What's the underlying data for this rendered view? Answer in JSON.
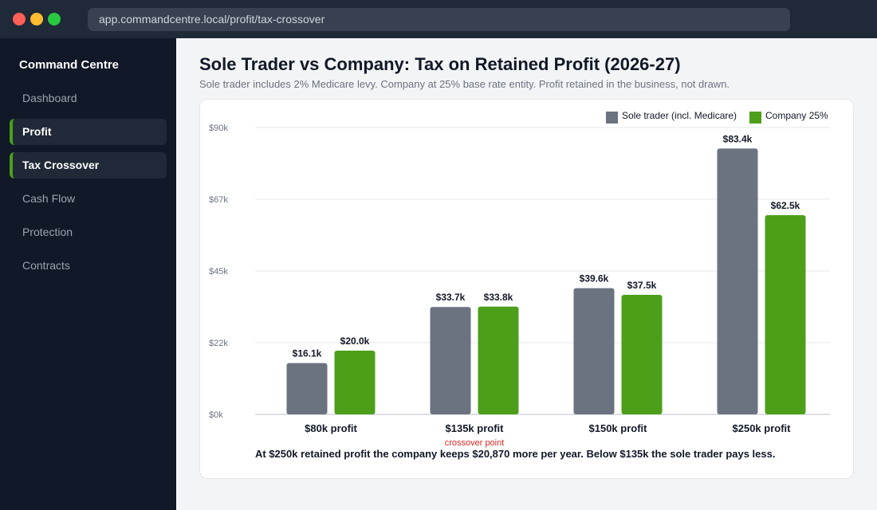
{
  "browser": {
    "url": "app.commandcentre.local/profit/tax-crossover"
  },
  "sidebar": {
    "brand": "Command Centre",
    "items": [
      {
        "label": "Dashboard",
        "active": false
      },
      {
        "label": "Profit",
        "active": true
      },
      {
        "label": "Tax Crossover",
        "active": true
      },
      {
        "label": "Cash Flow",
        "active": false
      },
      {
        "label": "Protection",
        "active": false
      },
      {
        "label": "Contracts",
        "active": false
      }
    ]
  },
  "header": {
    "title": "Sole Trader vs Company: Tax on Retained Profit (2026-27)",
    "subtitle": "Sole trader includes 2% Medicare levy. Company at 25% base rate entity. Profit retained in the business, not drawn."
  },
  "colors": {
    "sole_trader": "#6b7280",
    "company": "#4d9f1a",
    "annotation": "#dc2626",
    "accent": "#4d9f1a"
  },
  "chart_data": {
    "type": "bar",
    "categories": [
      "$80k profit",
      "$135k profit",
      "$150k profit",
      "$250k profit"
    ],
    "series": [
      {
        "name": "Sole trader (incl. Medicare)",
        "values": [
          16.1,
          33.7,
          39.6,
          83.4
        ],
        "labels": [
          "$16.1k",
          "$33.7k",
          "$39.6k",
          "$83.4k"
        ]
      },
      {
        "name": "Company 25%",
        "values": [
          20.0,
          33.8,
          37.5,
          62.5
        ],
        "labels": [
          "$20.0k",
          "$33.8k",
          "$37.5k",
          "$62.5k"
        ]
      }
    ],
    "yticks": [
      "$0k",
      "$22k",
      "$45k",
      "$67k",
      "$90k"
    ],
    "ylim": [
      0,
      90
    ],
    "grid": true,
    "legend": "top-right",
    "annotation": {
      "category_index": 1,
      "text": "crossover point"
    },
    "takeaway": "At $250k retained profit the company keeps $20,870 more per year. Below $135k the sole trader pays less."
  }
}
